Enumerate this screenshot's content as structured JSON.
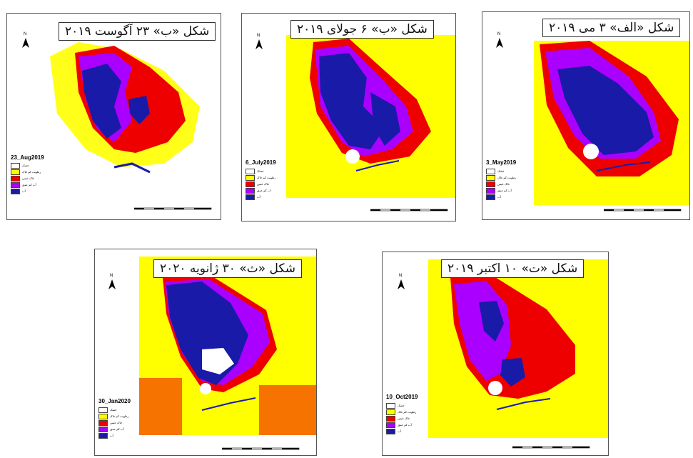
{
  "colors": {
    "yellow": "#ffff00",
    "red": "#ee0000",
    "purple": "#aa00ff",
    "blue": "#1a1aa8",
    "white": "#ffffff"
  },
  "legend_items": [
    {
      "label": "خشک",
      "color": "#ffffff"
    },
    {
      "label": "رطوبت کم خاک",
      "color": "#ffff00"
    },
    {
      "label": "خاک خیس",
      "color": "#ee0000"
    },
    {
      "label": "آب کم عمق",
      "color": "#aa00ff"
    },
    {
      "label": "آب",
      "color": "#1a1aa8"
    }
  ],
  "panels": [
    {
      "id": "aug",
      "title": "شکل «ب» ۲۳ آگوست ۲۰۱۹",
      "date": "23_Aug2019"
    },
    {
      "id": "jul",
      "title": "شکل «ب» ۶ جولای ۲۰۱۹",
      "date": "6_July2019"
    },
    {
      "id": "may",
      "title": "شکل «الف» ۳ می ۲۰۱۹",
      "date": "3_May2019"
    },
    {
      "id": "jan",
      "title": "شکل «ث» ۳۰ ژانویه ۲۰۲۰",
      "date": "30_Jan2020"
    },
    {
      "id": "oct",
      "title": "شکل «ت» ۱۰ اکتبر ۲۰۱۹",
      "date": "10_Oct2019"
    }
  ],
  "north_label": "N",
  "icons": {
    "north_arrow": "north-arrow-icon",
    "scale_bar": "scale-bar-icon"
  }
}
